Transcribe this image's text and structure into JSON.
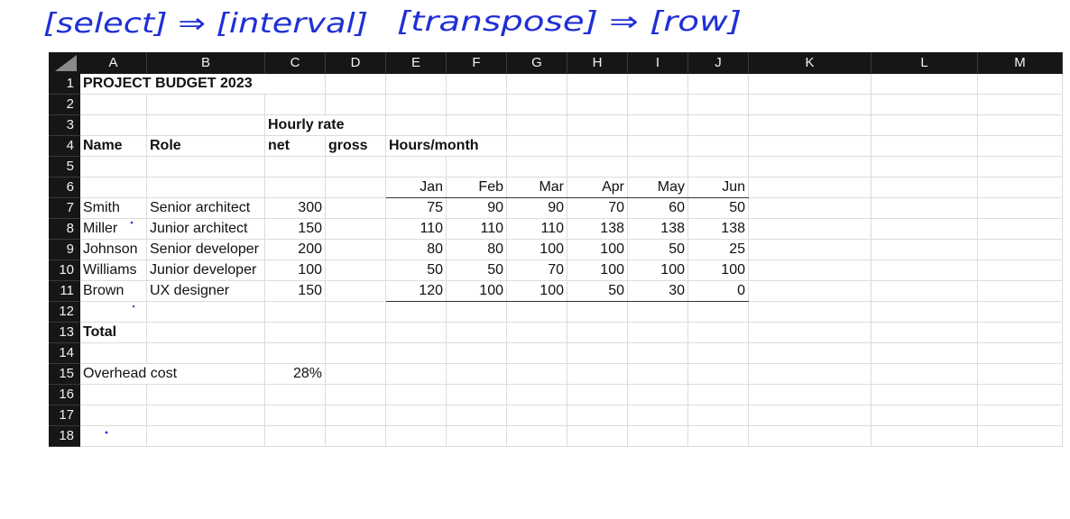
{
  "annotation": {
    "text_left": "[select] ⇒ [interval]",
    "text_right": "[transpose] ⇒ [row]",
    "ink_color": "#1f2fd6"
  },
  "columns": [
    "A",
    "B",
    "C",
    "D",
    "E",
    "F",
    "G",
    "H",
    "I",
    "J",
    "K",
    "L",
    "M"
  ],
  "rows": [
    "1",
    "2",
    "3",
    "4",
    "5",
    "6",
    "7",
    "8",
    "9",
    "10",
    "11",
    "12",
    "13",
    "14",
    "15",
    "16",
    "17",
    "18"
  ],
  "sheet": {
    "title": "PROJECT BUDGET 2023",
    "hourly_rate_label": "Hourly rate",
    "header_name": "Name",
    "header_role": "Role",
    "header_net": "net",
    "header_gross": "gross",
    "header_hours": "Hours/month",
    "months": [
      "Jan",
      "Feb",
      "Mar",
      "Apr",
      "May",
      "Jun"
    ],
    "staff": [
      {
        "name": "Smith",
        "role": "Senior architect",
        "net": "300",
        "hours": [
          "75",
          "90",
          "90",
          "70",
          "60",
          "50"
        ]
      },
      {
        "name": "Miller",
        "role": "Junior architect",
        "net": "150",
        "hours": [
          "110",
          "110",
          "110",
          "138",
          "138",
          "138"
        ]
      },
      {
        "name": "Johnson",
        "role": "Senior developer",
        "net": "200",
        "hours": [
          "80",
          "80",
          "100",
          "100",
          "50",
          "25"
        ]
      },
      {
        "name": "Williams",
        "role": "Junior developer",
        "net": "100",
        "hours": [
          "50",
          "50",
          "70",
          "100",
          "100",
          "100"
        ]
      },
      {
        "name": "Brown",
        "role": "UX designer",
        "net": "150",
        "hours": [
          "120",
          "100",
          "100",
          "50",
          "30",
          "0"
        ]
      }
    ],
    "total_label": "Total",
    "overhead_label": "Overhead cost",
    "overhead_value": "28%"
  },
  "colors": {
    "header_bg": "#161616",
    "header_text": "#f2f2f2",
    "grid_line": "#dcdcdc"
  }
}
